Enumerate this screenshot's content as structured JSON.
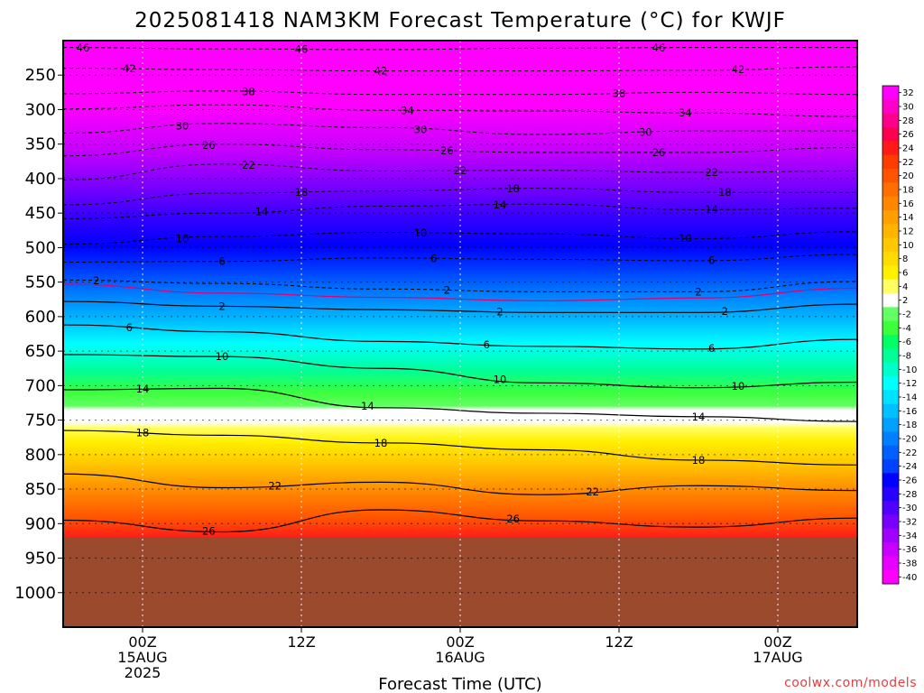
{
  "chart_data": {
    "type": "heatmap",
    "title": "2025081418 NAM3KM Forecast Temperature (°C) for KWJF",
    "xlabel": "Forecast Time (UTC)",
    "credit": "coolwx.com/models",
    "grid": true,
    "x_ticks": [
      {
        "hour": 6,
        "lines": [
          "00Z",
          "15AUG",
          "2025"
        ]
      },
      {
        "hour": 18,
        "lines": [
          "12Z"
        ]
      },
      {
        "hour": 30,
        "lines": [
          "00Z",
          "16AUG"
        ]
      },
      {
        "hour": 42,
        "lines": [
          "12Z"
        ]
      },
      {
        "hour": 54,
        "lines": [
          "00Z",
          "17AUG"
        ]
      }
    ],
    "xlim_hours": [
      0,
      60
    ],
    "y_ticks": [
      250,
      300,
      350,
      400,
      450,
      500,
      550,
      600,
      650,
      700,
      750,
      800,
      850,
      900,
      950,
      1000
    ],
    "ylim_hpa": [
      200,
      1050
    ],
    "ground_level_hpa": 920,
    "colorbar": {
      "ticks": [
        "32",
        "30",
        "28",
        "26",
        "24",
        "22",
        "20",
        "18",
        "16",
        "14",
        "12",
        "10",
        "8",
        "6",
        "4",
        "2",
        "-2",
        "-4",
        "-6",
        "-8",
        "-10",
        "-12",
        "-14",
        "-16",
        "-18",
        "-20",
        "-22",
        "-24",
        "-26",
        "-28",
        "-30",
        "-32",
        "-34",
        "-36",
        "-38",
        "-40"
      ],
      "colors": [
        "#ff00ff",
        "#ff00c8",
        "#ff008c",
        "#ff0050",
        "#ff1a1a",
        "#ff3c00",
        "#ff5500",
        "#ff6e00",
        "#ff8700",
        "#ffa000",
        "#ffb400",
        "#ffc800",
        "#ffdc00",
        "#fff000",
        "#ffff64",
        "#ffffff",
        "#64ff64",
        "#3cff3c",
        "#00ff64",
        "#00ff96",
        "#00ffc8",
        "#00ffff",
        "#00e0ff",
        "#00c0ff",
        "#00a0ff",
        "#0080ff",
        "#0060ff",
        "#0040ff",
        "#0000ff",
        "#2800ff",
        "#5000ff",
        "#7800ff",
        "#a000ff",
        "#c800ff",
        "#e600ff",
        "#ff00ff"
      ]
    },
    "isotherms": [
      {
        "value": -46,
        "label": "46",
        "dashed": true,
        "points": [
          [
            0,
            210
          ],
          [
            12,
            212
          ],
          [
            24,
            213
          ],
          [
            36,
            211
          ],
          [
            48,
            210
          ],
          [
            60,
            210
          ]
        ],
        "labels_at": [
          1.5,
          18,
          45
        ]
      },
      {
        "value": -42,
        "label": "42",
        "dashed": true,
        "points": [
          [
            0,
            240
          ],
          [
            12,
            242
          ],
          [
            24,
            244
          ],
          [
            36,
            244
          ],
          [
            48,
            243
          ],
          [
            60,
            238
          ]
        ],
        "labels_at": [
          5,
          24,
          51
        ]
      },
      {
        "value": -38,
        "label": "38",
        "dashed": true,
        "points": [
          [
            0,
            277
          ],
          [
            12,
            273
          ],
          [
            24,
            278
          ],
          [
            36,
            278
          ],
          [
            48,
            275
          ],
          [
            60,
            278
          ]
        ],
        "labels_at": [
          14,
          42
        ]
      },
      {
        "value": -34,
        "label": "34",
        "dashed": true,
        "points": [
          [
            0,
            299
          ],
          [
            12,
            293
          ],
          [
            24,
            301
          ],
          [
            36,
            302
          ],
          [
            48,
            305
          ],
          [
            60,
            310
          ]
        ],
        "labels_at": [
          26,
          47
        ]
      },
      {
        "value": -30,
        "label": "30",
        "dashed": true,
        "points": [
          [
            0,
            334
          ],
          [
            12,
            320
          ],
          [
            24,
            326
          ],
          [
            36,
            336
          ],
          [
            48,
            331
          ],
          [
            60,
            331
          ]
        ],
        "labels_at": [
          9,
          27,
          44
        ]
      },
      {
        "value": -26,
        "label": "26",
        "dashed": true,
        "points": [
          [
            0,
            367
          ],
          [
            12,
            350
          ],
          [
            24,
            358
          ],
          [
            36,
            362
          ],
          [
            48,
            362
          ],
          [
            60,
            355
          ]
        ],
        "labels_at": [
          11,
          29,
          45
        ]
      },
      {
        "value": -22,
        "label": "22",
        "dashed": true,
        "points": [
          [
            0,
            402
          ],
          [
            12,
            379
          ],
          [
            24,
            389
          ],
          [
            36,
            388
          ],
          [
            48,
            391
          ],
          [
            60,
            389
          ]
        ],
        "labels_at": [
          14,
          30,
          49
        ]
      },
      {
        "value": -18,
        "label": "18",
        "dashed": true,
        "points": [
          [
            0,
            438
          ],
          [
            12,
            421
          ],
          [
            24,
            418
          ],
          [
            36,
            414
          ],
          [
            48,
            420
          ],
          [
            60,
            420
          ]
        ],
        "labels_at": [
          18,
          34,
          50
        ]
      },
      {
        "value": -14,
        "label": "14",
        "dashed": true,
        "points": [
          [
            0,
            458
          ],
          [
            12,
            450
          ],
          [
            24,
            440
          ],
          [
            36,
            437
          ],
          [
            48,
            445
          ],
          [
            60,
            443
          ]
        ],
        "labels_at": [
          15,
          33,
          49
        ]
      },
      {
        "value": -10,
        "label": "10",
        "dashed": true,
        "points": [
          [
            0,
            495
          ],
          [
            12,
            484
          ],
          [
            24,
            478
          ],
          [
            36,
            480
          ],
          [
            48,
            487
          ],
          [
            60,
            477
          ]
        ],
        "labels_at": [
          9,
          27,
          47
        ]
      },
      {
        "value": -6,
        "label": "6",
        "dashed": true,
        "points": [
          [
            0,
            521
          ],
          [
            12,
            520
          ],
          [
            24,
            515
          ],
          [
            36,
            517
          ],
          [
            48,
            519
          ],
          [
            60,
            510
          ]
        ],
        "labels_at": [
          12,
          28,
          49
        ]
      },
      {
        "value": -2,
        "label": "2",
        "dashed": true,
        "points": [
          [
            0,
            547
          ],
          [
            12,
            552
          ],
          [
            24,
            560
          ],
          [
            36,
            564
          ],
          [
            48,
            564
          ],
          [
            60,
            549
          ]
        ],
        "labels_at": [
          2.5,
          29,
          48
        ]
      },
      {
        "value": 0,
        "label": "",
        "dashed": false,
        "color": "#e00070",
        "points": [
          [
            0,
            553
          ],
          [
            12,
            566
          ],
          [
            24,
            572
          ],
          [
            36,
            577
          ],
          [
            48,
            573
          ],
          [
            60,
            559
          ]
        ],
        "labels_at": []
      },
      {
        "value": 2,
        "label": "2",
        "dashed": false,
        "points": [
          [
            0,
            578
          ],
          [
            12,
            585
          ],
          [
            24,
            590
          ],
          [
            36,
            594
          ],
          [
            48,
            594
          ],
          [
            60,
            582
          ]
        ],
        "labels_at": [
          12,
          33,
          50
        ]
      },
      {
        "value": 6,
        "label": "6",
        "dashed": false,
        "points": [
          [
            0,
            612
          ],
          [
            12,
            622
          ],
          [
            24,
            636
          ],
          [
            36,
            643
          ],
          [
            48,
            647
          ],
          [
            60,
            633
          ]
        ],
        "labels_at": [
          5,
          32,
          49
        ]
      },
      {
        "value": 10,
        "label": "10",
        "dashed": false,
        "points": [
          [
            0,
            655
          ],
          [
            12,
            658
          ],
          [
            24,
            675
          ],
          [
            36,
            696
          ],
          [
            48,
            703
          ],
          [
            60,
            695
          ]
        ],
        "labels_at": [
          12,
          33,
          51
        ]
      },
      {
        "value": 14,
        "label": "14",
        "dashed": false,
        "points": [
          [
            0,
            706
          ],
          [
            12,
            704
          ],
          [
            24,
            732
          ],
          [
            36,
            740
          ],
          [
            48,
            745
          ],
          [
            60,
            752
          ]
        ],
        "labels_at": [
          6,
          23,
          48
        ]
      },
      {
        "value": 18,
        "label": "18",
        "dashed": false,
        "points": [
          [
            0,
            765
          ],
          [
            12,
            772
          ],
          [
            24,
            783
          ],
          [
            36,
            793
          ],
          [
            48,
            808
          ],
          [
            60,
            815
          ]
        ],
        "labels_at": [
          6,
          24,
          48
        ]
      },
      {
        "value": 22,
        "label": "22",
        "dashed": false,
        "points": [
          [
            0,
            828
          ],
          [
            12,
            848
          ],
          [
            24,
            840
          ],
          [
            36,
            858
          ],
          [
            48,
            845
          ],
          [
            60,
            852
          ]
        ],
        "labels_at": [
          16,
          40
        ]
      },
      {
        "value": 26,
        "label": "26",
        "dashed": false,
        "points": [
          [
            0,
            895
          ],
          [
            12,
            912
          ],
          [
            24,
            880
          ],
          [
            36,
            896
          ],
          [
            48,
            905
          ],
          [
            60,
            892
          ]
        ],
        "labels_at": [
          11,
          34
        ]
      }
    ]
  }
}
